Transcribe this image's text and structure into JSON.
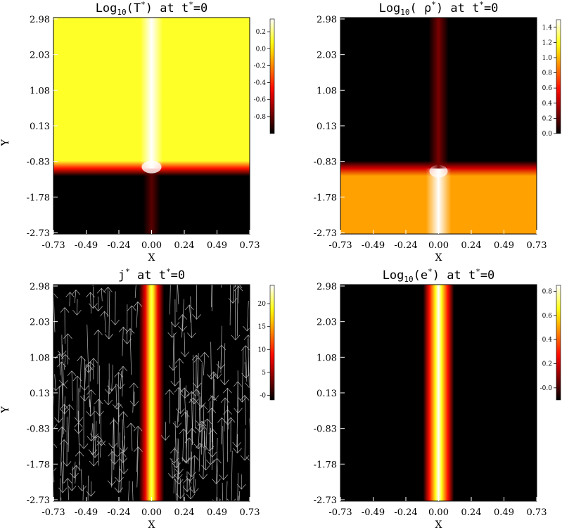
{
  "chart_data": [
    {
      "type": "heatmap",
      "title": "Log10(T*) at t*=0",
      "title_parts": {
        "pre": "Log",
        "sub": "10",
        "mid": "(T",
        "sup": "*",
        "post": ") at t",
        "sup2": "*",
        "end": "=0"
      },
      "xlabel": "X",
      "ylabel": "Y",
      "xlim": [
        -0.73,
        0.73
      ],
      "ylim": [
        -2.73,
        2.98
      ],
      "xticks": [
        "-0.73",
        "-0.49",
        "-0.24",
        "0.00",
        "0.24",
        "0.49",
        "0.73"
      ],
      "yticks": [
        "2.98",
        "2.03",
        "1.08",
        "0.13",
        "-0.83",
        "-1.78",
        "-2.73"
      ],
      "colorbar": {
        "range": [
          -1.0,
          0.35
        ],
        "ticks": [
          "0.2",
          "0.0",
          "-0.2",
          "-0.4",
          "-0.6",
          "-0.8"
        ],
        "tick_values": [
          0.2,
          0.0,
          -0.2,
          -0.4,
          -0.6,
          -0.8
        ]
      },
      "colormap": "heat",
      "field": {
        "interface_y": -1.0,
        "upper_level": 0.1,
        "lower_level": -1.0,
        "column_x": 0.0,
        "column_level": 0.35
      }
    },
    {
      "type": "heatmap",
      "title": "Log10( ρ*) at t*=0",
      "title_parts": {
        "pre": "Log",
        "sub": "10",
        "mid": "( ρ",
        "sup": "*",
        "post": ") at t",
        "sup2": "*",
        "end": "=0"
      },
      "xlabel": "X",
      "ylabel": "Y",
      "xlim": [
        -0.73,
        0.73
      ],
      "ylim": [
        -2.73,
        2.98
      ],
      "xticks": [
        "-0.73",
        "-0.49",
        "-0.24",
        "0.00",
        "0.24",
        "0.49",
        "0.73"
      ],
      "yticks": [
        "2.98",
        "2.03",
        "1.08",
        "0.13",
        "-0.83",
        "-1.78",
        "-2.73"
      ],
      "colorbar": {
        "range": [
          0.0,
          1.5
        ],
        "ticks": [
          "1.4",
          "1.2",
          "1.0",
          "0.8",
          "0.6",
          "0.4",
          "0.2",
          "0.0"
        ],
        "tick_values": [
          1.4,
          1.2,
          1.0,
          0.8,
          0.6,
          0.4,
          0.2,
          0.0
        ]
      },
      "colormap": "heat",
      "field": {
        "interface_y": -1.0,
        "upper_level": 0.0,
        "lower_level": 0.95,
        "column_x": 0.0,
        "column_level": 1.5
      }
    },
    {
      "type": "heatmap",
      "title": "j* at t*=0",
      "title_parts": {
        "pre": "j",
        "sub": "",
        "mid": "",
        "sup": "*",
        "post": " at t",
        "sup2": "*",
        "end": "=0"
      },
      "xlabel": "X",
      "ylabel": "Y",
      "xlim": [
        -0.73,
        0.73
      ],
      "ylim": [
        -2.73,
        2.98
      ],
      "xticks": [
        "-0.73",
        "-0.49",
        "-0.24",
        "0.00",
        "0.24",
        "0.49",
        "0.73"
      ],
      "yticks": [
        "2.98",
        "2.03",
        "1.08",
        "0.13",
        "-0.83",
        "-1.78",
        "-2.73"
      ],
      "colorbar": {
        "range": [
          -1,
          24
        ],
        "ticks": [
          "20",
          "15",
          "10",
          "5",
          "-0"
        ],
        "tick_values": [
          20,
          15,
          10,
          5,
          0
        ]
      },
      "colormap": "heat",
      "field": {
        "column_x": 0.0,
        "column_level": 24,
        "background_level": -1
      },
      "overlay": "vector-arrows"
    },
    {
      "type": "heatmap",
      "title": "Log10(e*) at t*=0",
      "title_parts": {
        "pre": "Log",
        "sub": "10",
        "mid": "(e",
        "sup": "*",
        "post": ") at t",
        "sup2": "*",
        "end": "=0"
      },
      "xlabel": "X",
      "ylabel": "Y",
      "xlim": [
        -0.73,
        0.73
      ],
      "ylim": [
        -2.73,
        2.98
      ],
      "xticks": [
        "-0.73",
        "-0.49",
        "-0.24",
        "0.00",
        "0.24",
        "0.49",
        "0.73"
      ],
      "yticks": [
        "2.98",
        "2.03",
        "1.08",
        "0.13",
        "-0.83",
        "-1.78",
        "-2.73"
      ],
      "colorbar": {
        "range": [
          -0.1,
          0.85
        ],
        "ticks": [
          "0.8",
          "0.6",
          "0.4",
          "0.2",
          "-0.0"
        ],
        "tick_values": [
          0.8,
          0.6,
          0.4,
          0.2,
          0.0
        ]
      },
      "colormap": "heat",
      "field": {
        "column_x": 0.0,
        "column_level": 0.85,
        "background_level": -0.1
      }
    }
  ]
}
